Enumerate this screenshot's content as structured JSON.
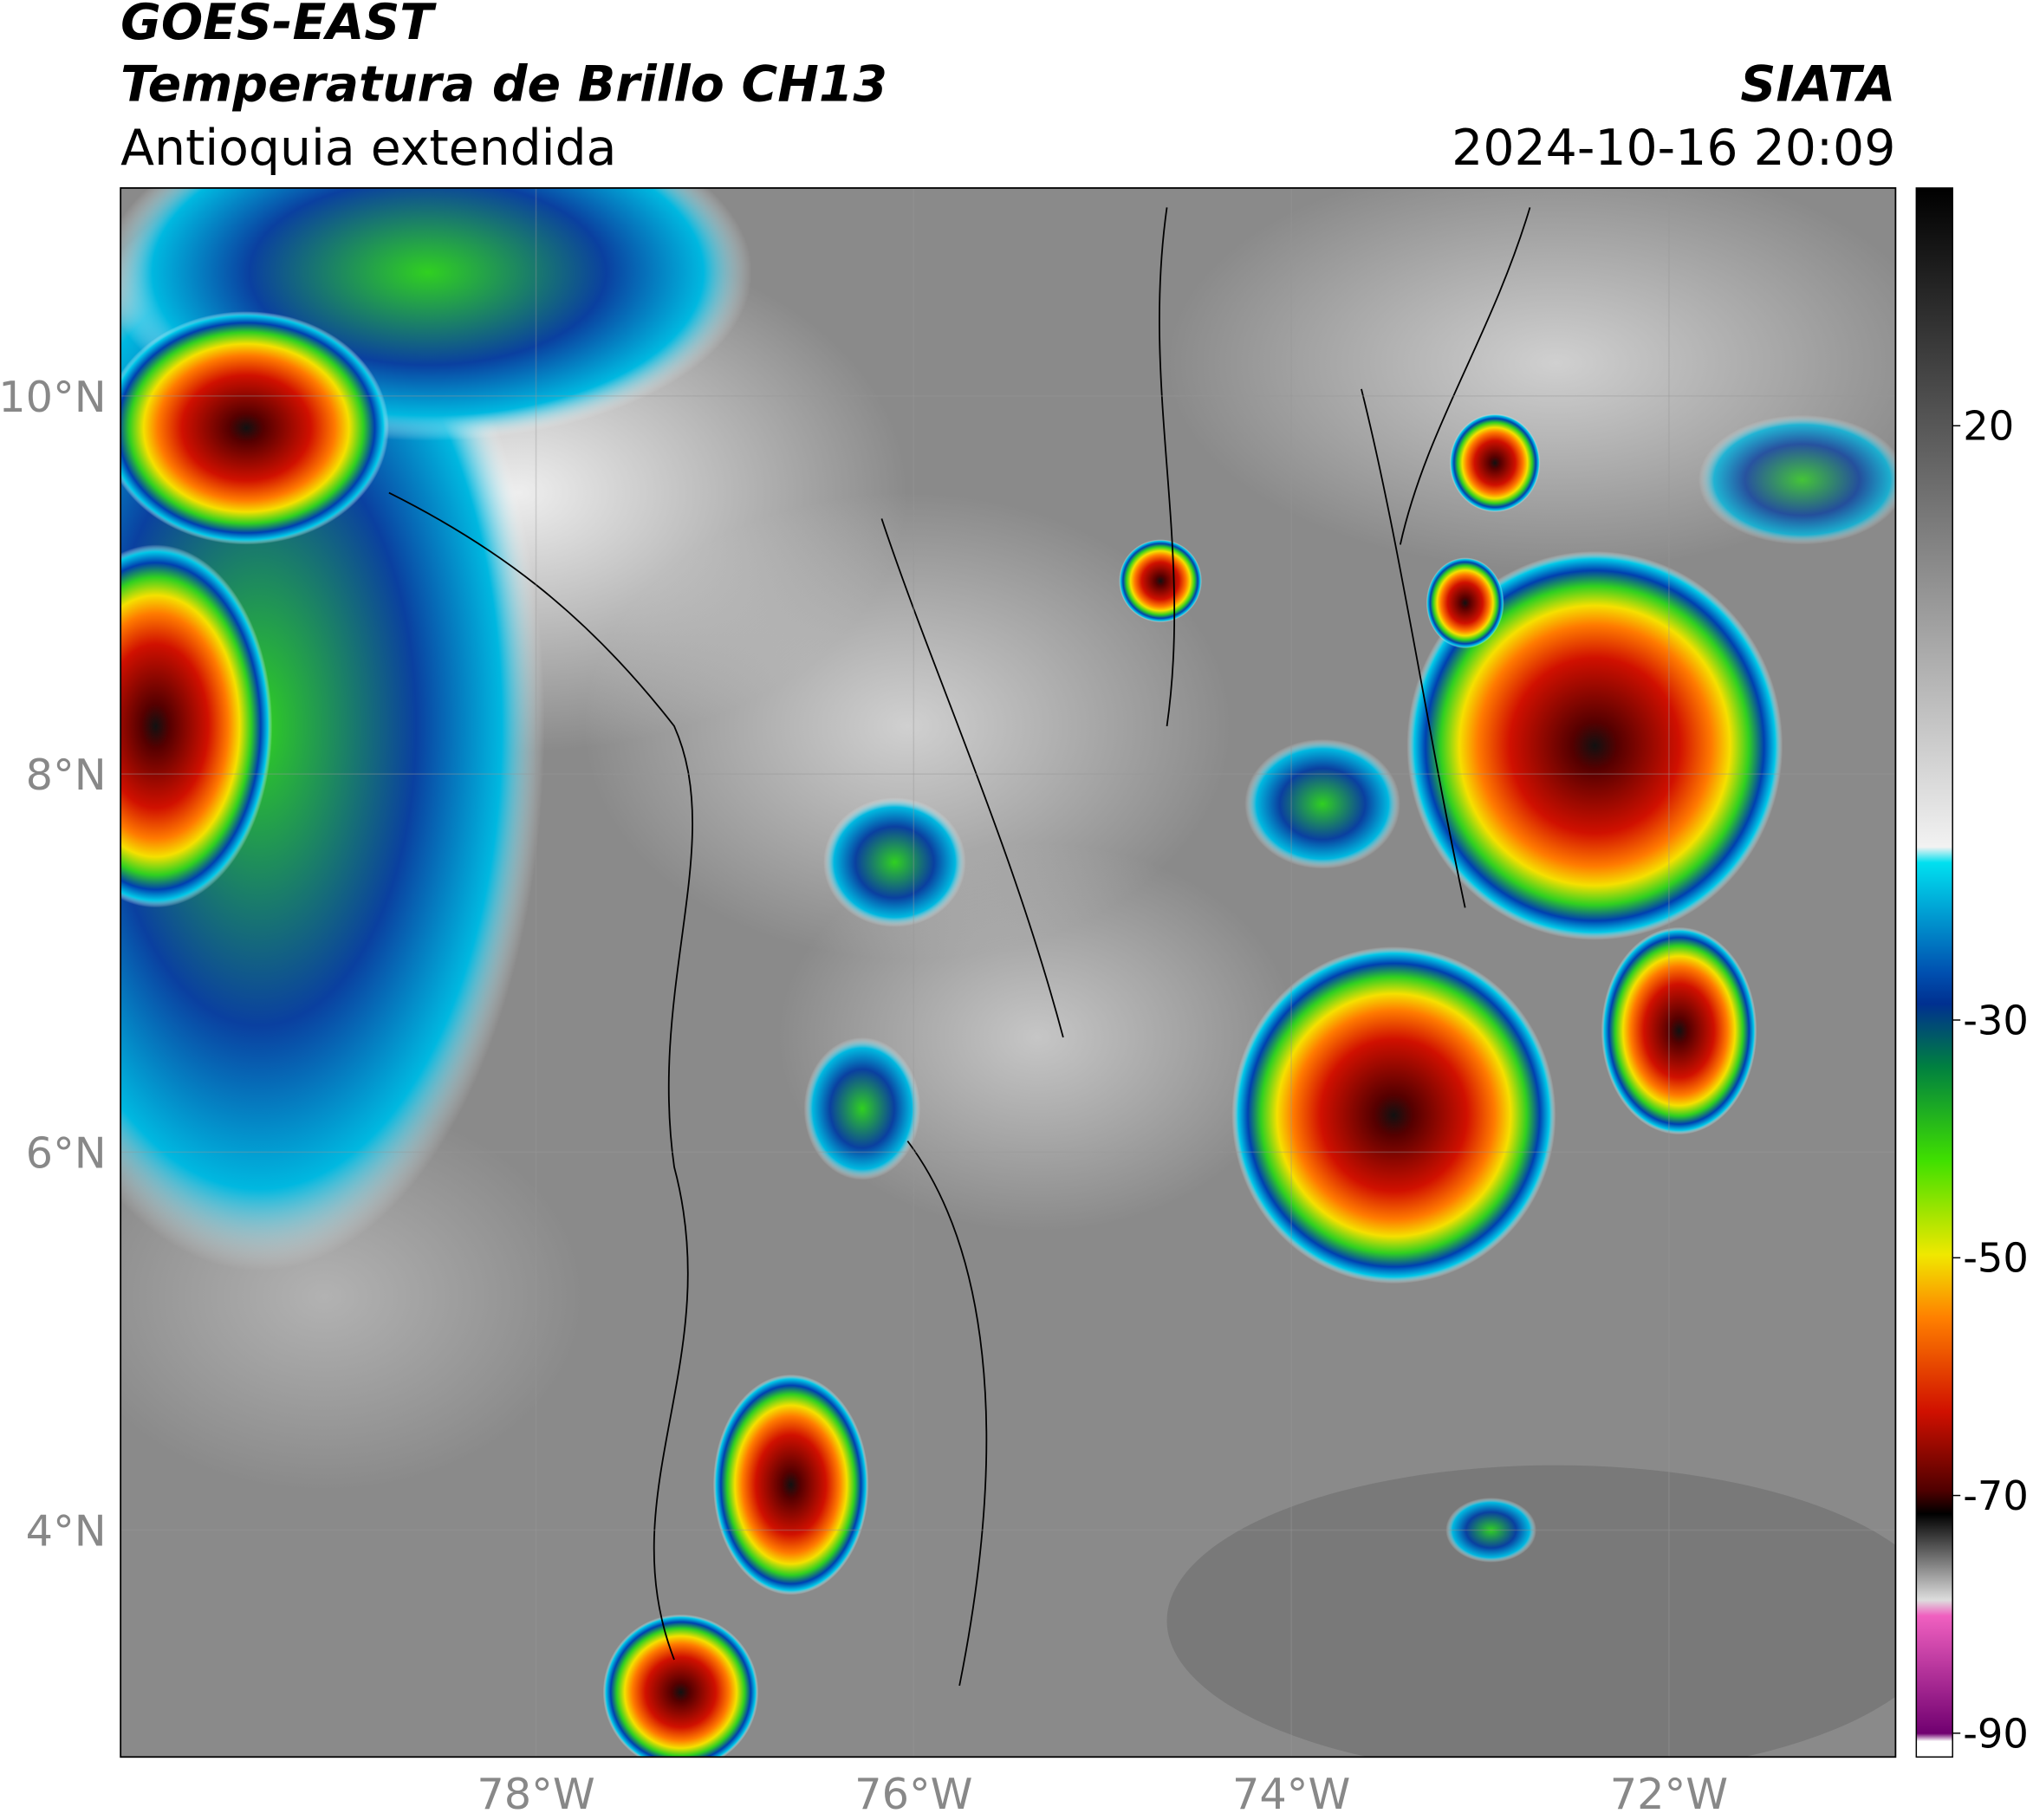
{
  "header": {
    "title": "GOES-EAST",
    "product": "Temperatura de Brillo CH13",
    "region": "Antioquia extendida",
    "source": "SIATA",
    "datetime": "2024-10-16 20:09"
  },
  "map": {
    "lon_range": [
      -80.2,
      -70.8
    ],
    "lat_range": [
      2.8,
      11.1
    ],
    "lat_ticks": [
      {
        "value": 10,
        "label": "10°N"
      },
      {
        "value": 8,
        "label": "8°N"
      },
      {
        "value": 6,
        "label": "6°N"
      },
      {
        "value": 4,
        "label": "4°N"
      }
    ],
    "lon_ticks": [
      {
        "value": -78,
        "label": "78°W"
      },
      {
        "value": -76,
        "label": "76°W"
      },
      {
        "value": -74,
        "label": "74°W"
      },
      {
        "value": -72,
        "label": "72°W"
      }
    ]
  },
  "colorbar": {
    "range": [
      -92,
      40
    ],
    "ticks": [
      20,
      -30,
      -50,
      -70,
      -90
    ]
  }
}
